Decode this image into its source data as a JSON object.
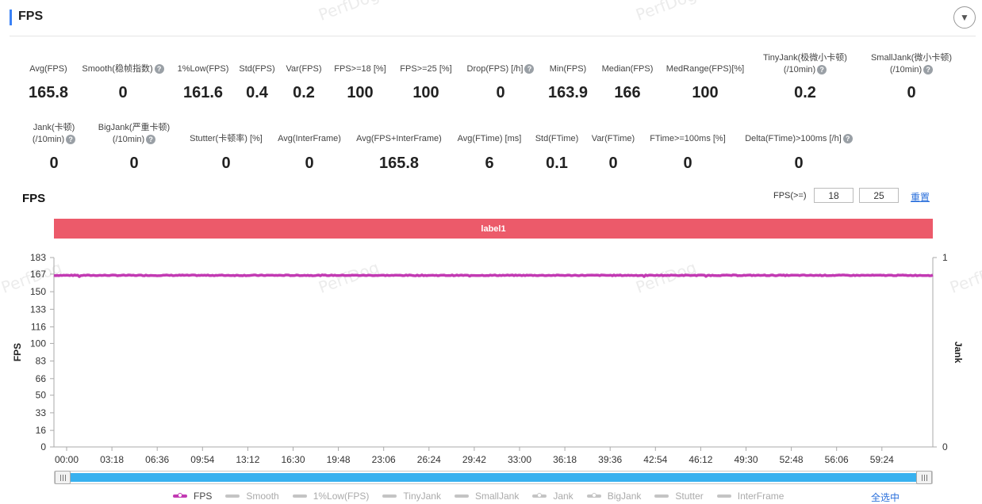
{
  "panel": {
    "title": "FPS"
  },
  "metrics_row1": [
    {
      "label": "Avg(FPS)",
      "value": "165.8",
      "help": false
    },
    {
      "label": "Smooth(稳帧指数)",
      "value": "0",
      "help": true
    },
    {
      "label": "1%Low(FPS)",
      "value": "161.6",
      "help": false
    },
    {
      "label": "Std(FPS)",
      "value": "0.4",
      "help": false
    },
    {
      "label": "Var(FPS)",
      "value": "0.2",
      "help": false
    },
    {
      "label": "FPS>=18 [%]",
      "value": "100",
      "help": false
    },
    {
      "label": "FPS>=25 [%]",
      "value": "100",
      "help": false
    },
    {
      "label": "Drop(FPS) [/h]",
      "value": "0",
      "help": true
    },
    {
      "label": "Min(FPS)",
      "value": "163.9",
      "help": false
    },
    {
      "label": "Median(FPS)",
      "value": "166",
      "help": false
    },
    {
      "label": "MedRange(FPS)[%]",
      "value": "100",
      "help": false
    },
    {
      "label": "TinyJank(极微小卡顿)",
      "label2": "(/10min)",
      "value": "0.2",
      "help": true
    },
    {
      "label": "SmallJank(微小卡顿)",
      "label2": "(/10min)",
      "value": "0",
      "help": true
    }
  ],
  "metrics_row2": [
    {
      "label": "Jank(卡顿)",
      "label2": "(/10min)",
      "value": "0",
      "help": true
    },
    {
      "label": "BigJank(严重卡顿)",
      "label2": "(/10min)",
      "value": "0",
      "help": true
    },
    {
      "label": "Stutter(卡顿率) [%]",
      "value": "0",
      "help": false
    },
    {
      "label": "Avg(InterFrame)",
      "value": "0",
      "help": false
    },
    {
      "label": "Avg(FPS+InterFrame)",
      "value": "165.8",
      "help": false
    },
    {
      "label": "Avg(FTime) [ms]",
      "value": "6",
      "help": false
    },
    {
      "label": "Std(FTime)",
      "value": "0.1",
      "help": false
    },
    {
      "label": "Var(FTime)",
      "value": "0",
      "help": false
    },
    {
      "label": "FTime>=100ms [%]",
      "value": "0",
      "help": false
    },
    {
      "label": "Delta(FTime)>100ms [/h]",
      "value": "0",
      "help": true
    }
  ],
  "chart_section": {
    "title": "FPS",
    "threshold_label": "FPS(>=)",
    "threshold_1": "18",
    "threshold_2": "25",
    "reset_label": "重置",
    "band_label": "label1",
    "select_all_label": "全选中",
    "watermark": "PerfDog"
  },
  "legend": [
    {
      "name": "FPS",
      "active": true,
      "marker": "dot"
    },
    {
      "name": "Smooth",
      "active": false,
      "marker": "line"
    },
    {
      "name": "1%Low(FPS)",
      "active": false,
      "marker": "line"
    },
    {
      "name": "TinyJank",
      "active": false,
      "marker": "line"
    },
    {
      "name": "SmallJank",
      "active": false,
      "marker": "line"
    },
    {
      "name": "Jank",
      "active": false,
      "marker": "dot"
    },
    {
      "name": "BigJank",
      "active": false,
      "marker": "dot"
    },
    {
      "name": "Stutter",
      "active": false,
      "marker": "line"
    },
    {
      "name": "InterFrame",
      "active": false,
      "marker": "line"
    }
  ],
  "colors": {
    "fps_line": "#c23ab3",
    "band": "#ec5a6a",
    "slider": "#38b1ef",
    "accent": "#3b82f6",
    "link": "#2a6fdb"
  },
  "chart_data": {
    "type": "line",
    "ylabel": "FPS",
    "y2label": "Jank",
    "y_ticks": [
      "0",
      "16",
      "33",
      "50",
      "66",
      "83",
      "100",
      "116",
      "133",
      "150",
      "167",
      "183"
    ],
    "y2_ticks": [
      "0",
      "1"
    ],
    "ylim": [
      0,
      183
    ],
    "y2lim": [
      0,
      1
    ],
    "x_ticks": [
      "00:00",
      "03:18",
      "06:36",
      "09:54",
      "13:12",
      "16:30",
      "19:48",
      "23:06",
      "26:24",
      "29:42",
      "33:00",
      "36:18",
      "39:36",
      "42:54",
      "46:12",
      "49:30",
      "52:48",
      "56:06",
      "59:24"
    ],
    "x_range_minutes": [
      0,
      62.5
    ],
    "grid": false,
    "series": [
      {
        "name": "FPS",
        "approx_value": 165.8,
        "min": 163.9,
        "max": 167
      }
    ]
  }
}
